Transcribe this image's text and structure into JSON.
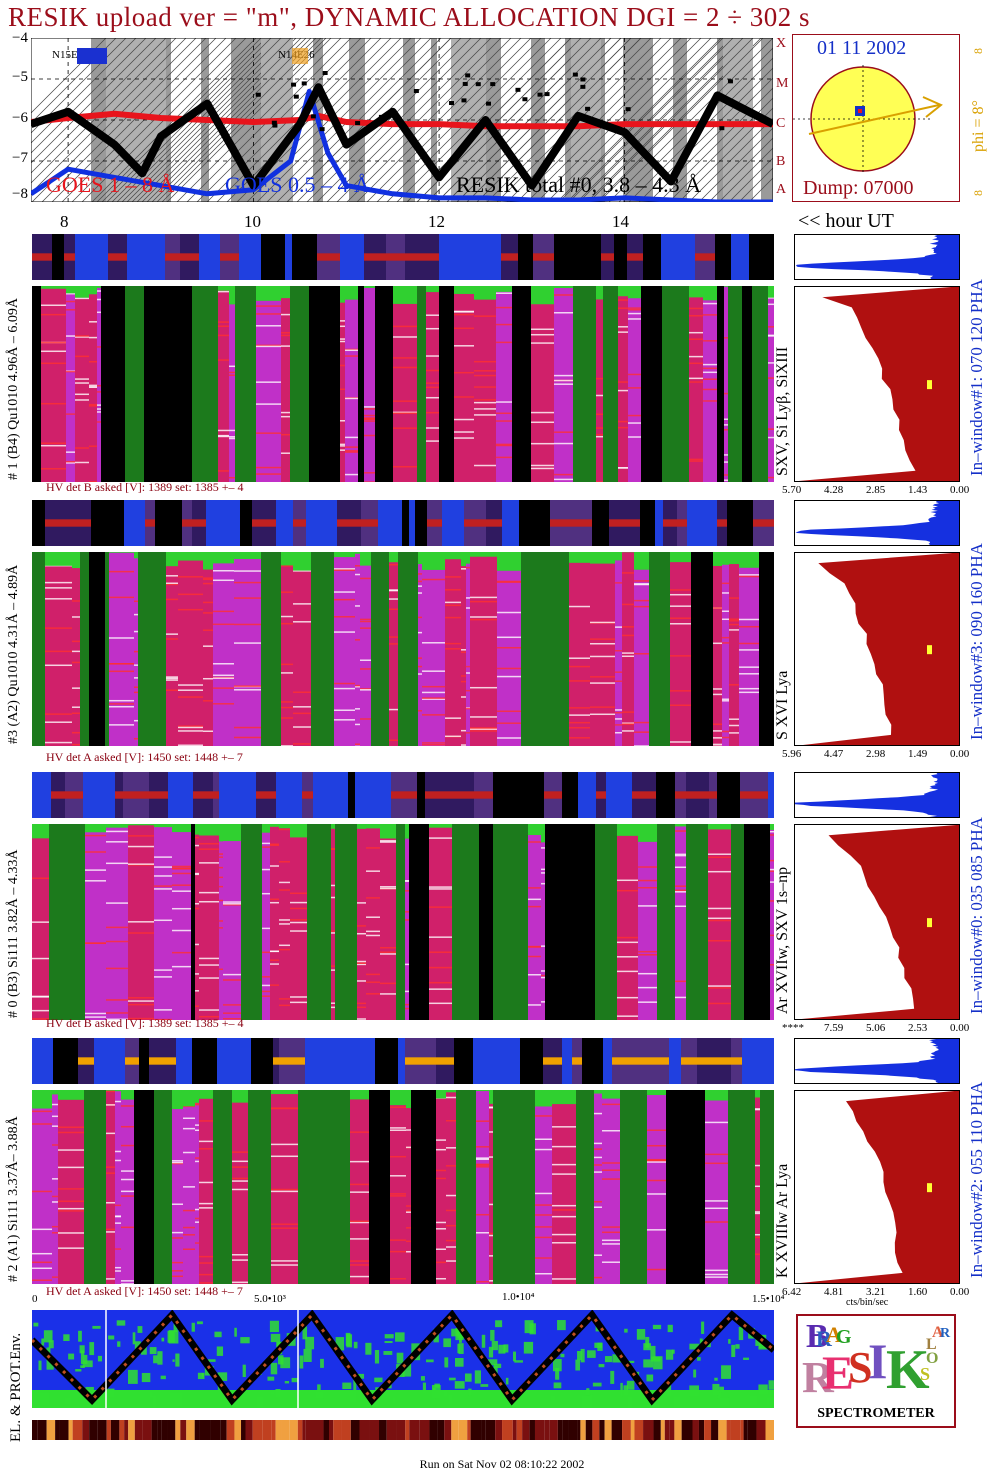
{
  "header": {
    "title": "RESIK upload ver = \"m\", DYNAMIC ALLOCATION  DGI =   2 ÷ 302 s",
    "goes_legend": {
      "goes_long": "GOES 1 – 8 Å",
      "goes_short": "GOES 0.5 – 4 Å",
      "resik": "RESIK total #0, 3.8 – 4.3 Å"
    },
    "flare_class_labels": [
      "A",
      "B",
      "C",
      "M",
      "X"
    ],
    "region_labels": [
      "N15E27",
      "N14E26"
    ],
    "y_ticks": [
      "−4",
      "−5",
      "−6",
      "−7",
      "−8"
    ],
    "x_hour_ticks": [
      "8",
      "10",
      "12",
      "14"
    ],
    "hour_label": "<< hour UT"
  },
  "sun_panel": {
    "date": "01 11 2002",
    "dump": "Dump: 07000",
    "phi": "phi = 8°",
    "deg_top": "8",
    "deg_bottom": "8",
    "deg_mid": "8°"
  },
  "detectors": [
    {
      "left_label": "# 1 (B4) Qu1010 4.96Å – 6.09Å",
      "line_label": "SXV, Si Lyβ, SiXIII",
      "window_label": "In–window#1:  070 120 PHA",
      "hv_text": "HV det B asked [V]:  1389 set:  1385  +–  4",
      "x_ticks": [
        "5.70",
        "4.28",
        "2.85",
        "1.43",
        "0.00"
      ]
    },
    {
      "left_label": "#3 (A2) Qu1010  4.31Å – 4.89Å",
      "line_label": "S XVI Lya",
      "window_label": "In–window#3:  090 160 PHA",
      "hv_text": "HV det A asked [V]:  1450 set:  1448  +–  7",
      "x_ticks": [
        "5.96",
        "4.47",
        "2.98",
        "1.49",
        "0.00"
      ]
    },
    {
      "left_label": "# 0 (B3) Si111  3.82Å – 4.33Å",
      "line_label": "Ar XVIIw,  SXV  1s–np",
      "window_label": "In–window#0:  035 085 PHA",
      "hv_text": "HV det B asked [V]:  1389 set:  1385  +–  4",
      "x_ticks": [
        "****",
        "7.59",
        "5.06",
        "2.53",
        "0.00"
      ]
    },
    {
      "left_label": "# 2 (A1) Si111  3.37Å–  3.88Å",
      "line_label": "K XVIIIw  Ar Lya",
      "window_label": "In–window#2:  055 110 PHA",
      "hv_text": "HV det A asked [V]:  1450 set:  1448  +–  7",
      "x_ticks": [
        "6.42",
        "4.81",
        "3.21",
        "1.60",
        "0.00"
      ]
    }
  ],
  "bottom": {
    "x_ticks": [
      "0",
      "5.0•10³",
      "1.0•10⁴",
      "1.5•10⁴"
    ],
    "unit_label": "cts/bin/sec",
    "env_label": "EL. & PROT.Env.",
    "run_on": "Run on Sat Nov 02 08:10:22 2002"
  },
  "logo": {
    "letters": [
      "B",
      "R",
      "A",
      "G",
      "R",
      "E",
      "S",
      "I",
      "K",
      "S",
      "O",
      "L",
      "A",
      "R"
    ],
    "caption": "SPECTROMETER"
  },
  "colors": {
    "title": "#9b0d1a",
    "blue_label": "#1530c8",
    "hist_fill": "#b01010",
    "goes_long": "#e8141c",
    "goes_short": "#1030e0",
    "sun": "#ffff55",
    "phi": "#d9a000"
  },
  "chart_data": [
    {
      "type": "line",
      "ylabel": "",
      "ylim": [
        -8,
        -4
      ],
      "x_unit": "hour UT",
      "xlim": [
        7.6,
        15.6
      ],
      "series": [
        {
          "name": "GOES 1 – 8 Å",
          "x": [
            7.6,
            8.0,
            8.5,
            9.0,
            9.5,
            10.0,
            10.5,
            10.7,
            11.0,
            11.5,
            12.0,
            12.5,
            13.0,
            13.5,
            14.0,
            14.5,
            15.0,
            15.6
          ],
          "y": [
            -6.05,
            -5.95,
            -5.85,
            -5.95,
            -6.0,
            -6.05,
            -6.0,
            -5.9,
            -6.05,
            -6.1,
            -6.1,
            -6.15,
            -6.15,
            -6.15,
            -6.1,
            -6.1,
            -6.1,
            -6.1
          ]
        },
        {
          "name": "GOES 0.5 – 4 Å",
          "x": [
            7.6,
            8.0,
            8.5,
            9.0,
            9.5,
            10.0,
            10.4,
            10.6,
            10.8,
            11.0,
            11.5,
            12.0,
            12.5,
            13.0,
            13.5,
            14.0,
            14.5,
            15.0,
            15.6
          ],
          "y": [
            -7.8,
            -7.2,
            -7.4,
            -7.6,
            -7.8,
            -7.7,
            -7.0,
            -5.3,
            -6.8,
            -7.6,
            -7.8,
            -7.9,
            -7.9,
            -7.95,
            -7.95,
            -7.9,
            -7.95,
            -8.0,
            -8.0
          ]
        },
        {
          "name": "RESIK total #0, 3.8 – 4.3 Å",
          "x": [
            7.6,
            8.0,
            8.5,
            8.8,
            9.0,
            9.5,
            10.0,
            10.5,
            10.7,
            11.0,
            11.5,
            12.0,
            12.5,
            13.0,
            13.5,
            14.0,
            14.5,
            15.0,
            15.6
          ],
          "y": [
            -6.1,
            -5.8,
            -6.6,
            -7.3,
            -6.4,
            -5.6,
            -7.6,
            -6.1,
            -5.2,
            -6.6,
            -5.8,
            -7.4,
            -6.0,
            -7.6,
            -5.9,
            -6.3,
            -7.5,
            -5.4,
            -6.1
          ]
        }
      ]
    },
    {
      "type": "area",
      "title": "In–window#1:  070 120 PHA",
      "x_ticks": [
        "5.70",
        "4.28",
        "2.85",
        "1.43",
        "0.00"
      ],
      "xlabel": "cts/bin/sec",
      "values": [
        0.3,
        4.9,
        3.8,
        3.6,
        3.6,
        3.4,
        3.2,
        3.0,
        2.8,
        2.8,
        2.6,
        2.4,
        2.4,
        2.2,
        2.2,
        2.0,
        1.9,
        1.8,
        1.6,
        5.6
      ]
    },
    {
      "type": "area",
      "title": "In–window#3:  090 160 PHA",
      "x_ticks": [
        "5.96",
        "4.47",
        "2.98",
        "1.49",
        "0.00"
      ],
      "xlabel": "cts/bin/sec",
      "values": [
        0.3,
        5.2,
        4.9,
        4.4,
        4.2,
        4.0,
        3.9,
        3.8,
        3.6,
        3.5,
        3.4,
        3.2,
        3.1,
        3.0,
        2.9,
        2.8,
        2.8,
        2.7,
        2.7,
        5.9
      ]
    },
    {
      "type": "area",
      "title": "In–window#0:  035 085 PHA",
      "x_ticks": [
        "****",
        "7.59",
        "5.06",
        "2.53",
        "0.00"
      ],
      "xlabel": "cts/bin/sec",
      "values": [
        0.3,
        8.2,
        7.4,
        6.8,
        6.2,
        5.8,
        5.6,
        5.2,
        5.0,
        4.6,
        4.4,
        4.2,
        4.0,
        3.8,
        3.6,
        3.4,
        3.2,
        3.0,
        2.9,
        9.8
      ]
    },
    {
      "type": "area",
      "title": "In–window#2:  055 110 PHA",
      "x_ticks": [
        "6.42",
        "4.81",
        "3.21",
        "1.60",
        "0.00"
      ],
      "xlabel": "cts/bin/sec",
      "values": [
        0.3,
        4.4,
        4.2,
        4.0,
        3.8,
        3.6,
        3.4,
        3.2,
        3.1,
        3.0,
        2.9,
        2.8,
        2.7,
        2.6,
        2.6,
        2.5,
        2.5,
        2.4,
        2.4,
        6.2
      ]
    }
  ]
}
